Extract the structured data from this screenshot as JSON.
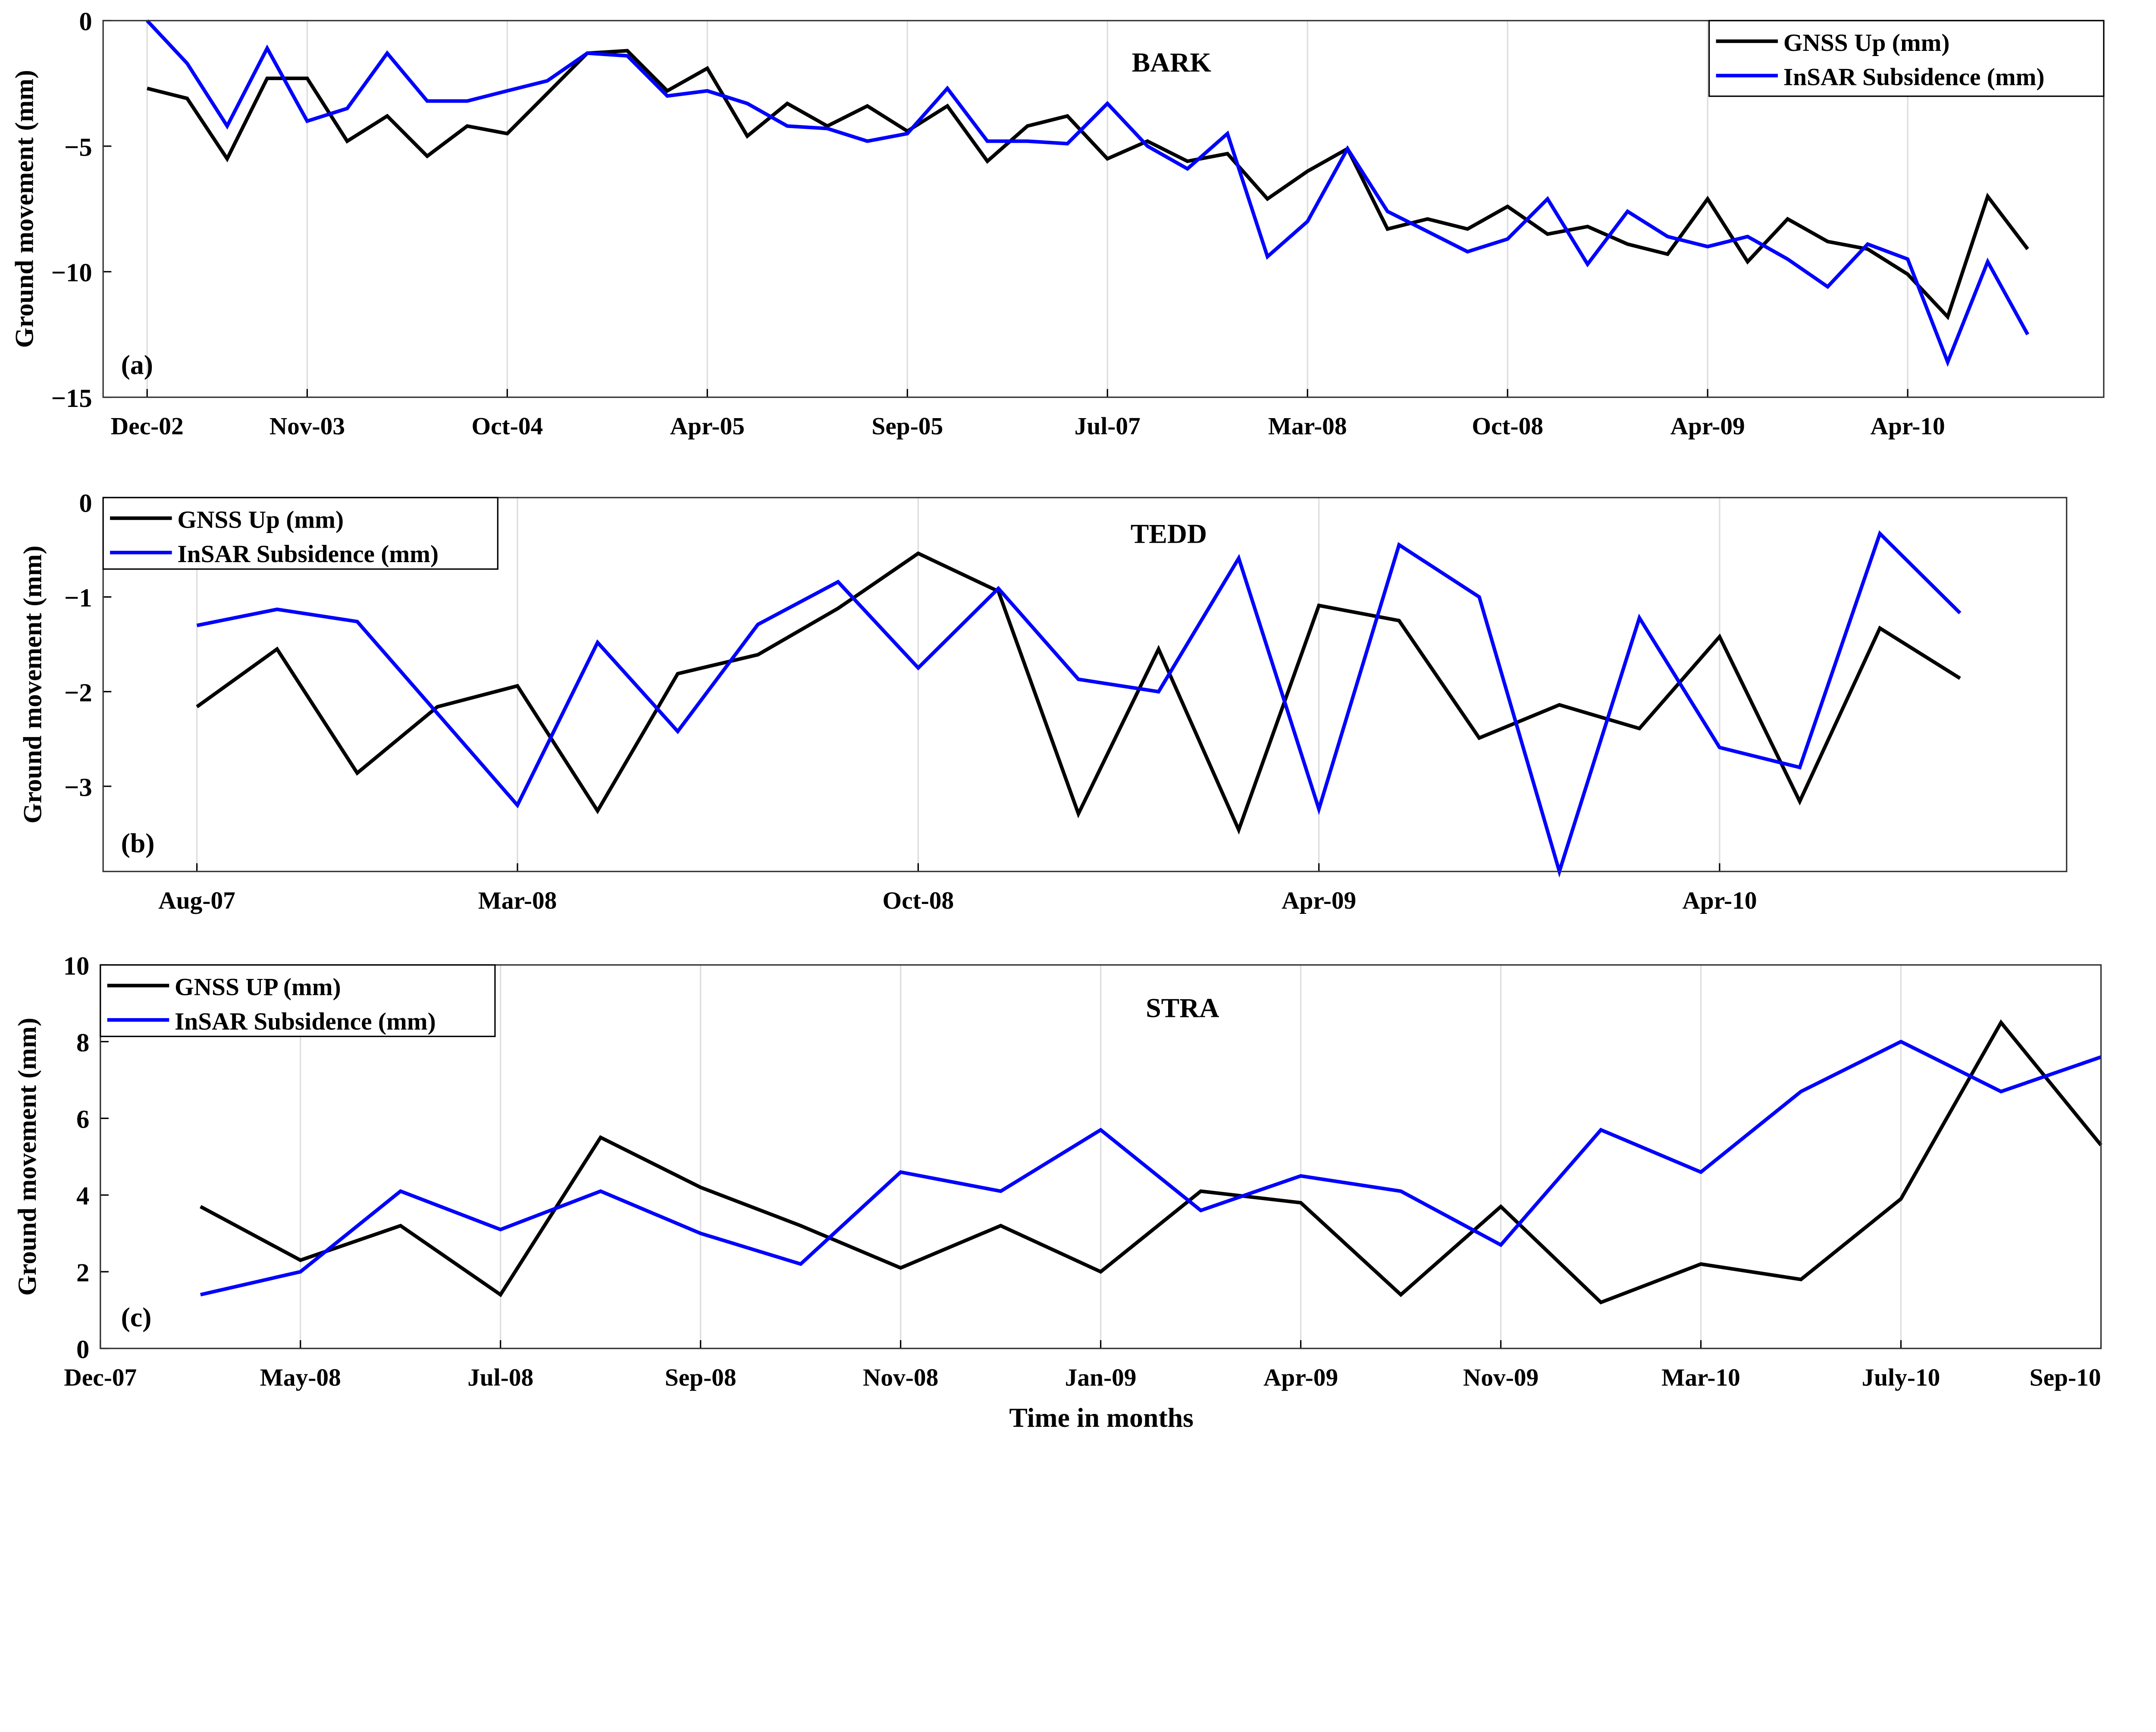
{
  "colors": {
    "gnss": "#000000",
    "insar": "#0000ff",
    "grid": "#dddddd"
  },
  "xlabel": "Time in months",
  "chart_data": [
    {
      "type": "line",
      "panel_label": "(a)",
      "title": "BARK",
      "ylabel": "Ground movement (mm)",
      "ylim": [
        -15,
        0
      ],
      "yticks": [
        0,
        -5,
        -10,
        -15
      ],
      "ytick_labels": [
        "0",
        "−5",
        "−10",
        "−15"
      ],
      "xlim": [
        -1.1,
        48.9
      ],
      "xticks": [
        0,
        4,
        9,
        14,
        19,
        24,
        29,
        34,
        39,
        44
      ],
      "xtick_labels": [
        "Dec-02",
        "Nov-03",
        "Oct-04",
        "Apr-05",
        "Sep-05",
        "Jul-07",
        "Mar-08",
        "Oct-08",
        "Apr-09",
        "Apr-10"
      ],
      "grid": "x",
      "legend": "top-right",
      "series": [
        {
          "name": "GNSS Up (mm)",
          "color": "#000000",
          "values": [
            -2.7,
            -3.1,
            -5.5,
            -2.3,
            -2.3,
            -4.8,
            -3.8,
            -5.4,
            -4.2,
            -4.5,
            -2.9,
            -1.3,
            -1.2,
            -2.8,
            -1.9,
            -4.6,
            -3.3,
            -4.2,
            -3.4,
            -4.4,
            -3.4,
            -5.6,
            -4.2,
            -3.8,
            -5.5,
            -4.8,
            -5.6,
            -5.3,
            -7.1,
            -6.0,
            -5.1,
            -8.3,
            -7.9,
            -8.3,
            -7.4,
            -8.5,
            -8.2,
            -8.9,
            -9.3,
            -7.1,
            -9.6,
            -7.9,
            -8.8,
            -9.1,
            -10.1,
            -11.8,
            -7.0,
            -9.1
          ]
        },
        {
          "name": "InSAR Subsidence (mm)",
          "color": "#0000ff",
          "values": [
            0,
            -1.7,
            -4.2,
            -1.1,
            -4.0,
            -3.5,
            -1.3,
            -3.2,
            -3.2,
            -2.8,
            -2.4,
            -1.3,
            -1.4,
            -3.0,
            -2.8,
            -3.3,
            -4.2,
            -4.3,
            -4.8,
            -4.5,
            -2.7,
            -4.8,
            -4.8,
            -4.9,
            -3.3,
            -5.0,
            -5.9,
            -4.5,
            -9.4,
            -8.0,
            -5.1,
            -7.6,
            -8.4,
            -9.2,
            -8.7,
            -7.1,
            -9.7,
            -7.6,
            -8.6,
            -9.0,
            -8.6,
            -9.5,
            -10.6,
            -8.9,
            -9.5,
            -13.6,
            -9.6,
            -12.5
          ]
        }
      ]
    },
    {
      "type": "line",
      "panel_label": "(b)",
      "title": "TEDD",
      "ylabel": "Ground movement (mm)",
      "ylim": [
        -3.9,
        0.05
      ],
      "yticks": [
        0,
        -1,
        -2,
        -3
      ],
      "ytick_labels": [
        "0",
        "−1",
        "−2",
        "−3"
      ],
      "xlim": [
        -1.17,
        23.33
      ],
      "xticks": [
        0,
        4,
        9,
        14,
        19
      ],
      "xtick_labels": [
        "Aug-07",
        "Mar-08",
        "Oct-08",
        "Apr-09",
        "Apr-10"
      ],
      "grid": "x",
      "legend": "top-left",
      "series": [
        {
          "name": "GNSS Up (mm)",
          "color": "#000000",
          "values": [
            -2.16,
            -1.55,
            -2.86,
            -2.16,
            -1.94,
            -3.26,
            -1.81,
            -1.61,
            -1.12,
            -0.54,
            -0.94,
            -3.29,
            -1.55,
            -3.46,
            -1.09,
            -1.25,
            -2.49,
            -2.14,
            -2.39,
            -1.42,
            -3.16,
            -1.33,
            -1.86
          ]
        },
        {
          "name": "InSAR Subsidence (mm)",
          "color": "#0000ff",
          "values": [
            -1.3,
            -1.13,
            -1.26,
            -2.23,
            -3.2,
            -1.48,
            -2.42,
            -1.29,
            -0.84,
            -1.75,
            -0.91,
            -1.87,
            -2.0,
            -0.59,
            -3.24,
            -0.45,
            -1.0,
            -3.9,
            -1.22,
            -2.59,
            -2.8,
            -0.33,
            -1.17
          ]
        }
      ]
    },
    {
      "type": "line",
      "panel_label": "(c)",
      "title": "STRA",
      "ylabel": "Ground movement (mm)",
      "ylim": [
        0,
        10
      ],
      "yticks": [
        0,
        2,
        4,
        6,
        8,
        10
      ],
      "ytick_labels": [
        "0",
        "2",
        "4",
        "6",
        "8",
        "10"
      ],
      "xlim": [
        -1,
        19
      ],
      "xticks": [
        -1,
        1,
        3,
        5,
        7,
        9,
        11,
        13,
        15,
        17,
        19
      ],
      "xtick_labels": [
        "Dec-07",
        "May-08",
        "Jul-08",
        "Sep-08",
        "Nov-08",
        "Jan-09",
        "Apr-09",
        "Nov-09",
        "Mar-10",
        "July-10",
        "Sep-10"
      ],
      "grid": "x",
      "legend": "top-left",
      "series": [
        {
          "name": "GNSS UP (mm)",
          "color": "#000000",
          "values": [
            3.7,
            2.3,
            3.2,
            1.4,
            5.5,
            4.2,
            3.2,
            2.1,
            3.2,
            2.0,
            4.1,
            3.8,
            1.4,
            3.7,
            1.2,
            2.2,
            1.8,
            3.9,
            8.5,
            5.3
          ]
        },
        {
          "name": "InSAR Subsidence (mm)",
          "color": "#0000ff",
          "values": [
            1.4,
            2.0,
            4.1,
            3.1,
            4.1,
            3.0,
            2.2,
            4.6,
            4.1,
            5.7,
            3.6,
            4.5,
            4.1,
            2.7,
            5.7,
            4.6,
            6.7,
            8.0,
            6.7,
            7.6
          ]
        }
      ]
    }
  ]
}
